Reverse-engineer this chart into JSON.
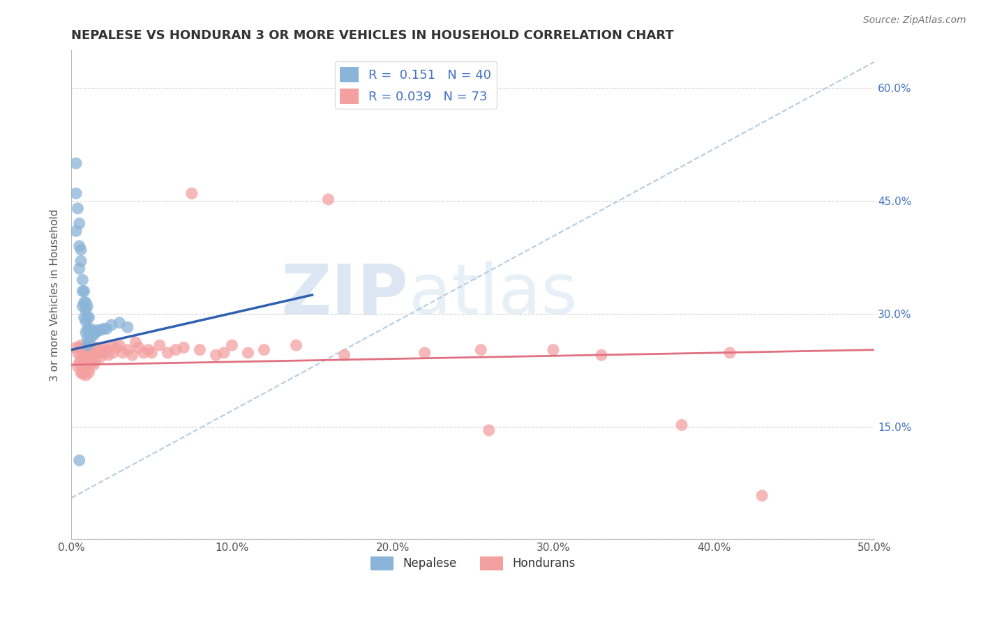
{
  "title": "NEPALESE VS HONDURAN 3 OR MORE VEHICLES IN HOUSEHOLD CORRELATION CHART",
  "source": "Source: ZipAtlas.com",
  "ylabel": "3 or more Vehicles in Household",
  "x_min": 0.0,
  "x_max": 0.5,
  "y_min": 0.0,
  "y_max": 0.65,
  "x_ticks": [
    0.0,
    0.1,
    0.2,
    0.3,
    0.4,
    0.5
  ],
  "x_tick_labels": [
    "0.0%",
    "10.0%",
    "20.0%",
    "30.0%",
    "40.0%",
    "50.0%"
  ],
  "y_ticks_left": [
    0.0,
    0.15,
    0.3,
    0.45,
    0.6
  ],
  "y_ticks_right": [
    0.15,
    0.3,
    0.45,
    0.6
  ],
  "y_tick_labels_right": [
    "15.0%",
    "30.0%",
    "45.0%",
    "60.0%"
  ],
  "nepalese_color": "#8ab4d8",
  "honduran_color": "#f4a0a0",
  "nepalese_line_color": "#3060b0",
  "honduran_line_color": "#e07080",
  "diag_line_color": "#aac8e0",
  "nepalese_R": 0.151,
  "nepalese_N": 40,
  "honduran_R": 0.039,
  "honduran_N": 73,
  "legend_label_nepalese": "Nepalese",
  "legend_label_honduran": "Hondurans",
  "legend_text_color": "#4472c4",
  "watermark_color": "#d0e4f0",
  "nepalese_x": [
    0.003,
    0.003,
    0.003,
    0.004,
    0.005,
    0.005,
    0.005,
    0.006,
    0.006,
    0.007,
    0.007,
    0.007,
    0.008,
    0.008,
    0.008,
    0.009,
    0.009,
    0.009,
    0.009,
    0.01,
    0.01,
    0.01,
    0.01,
    0.01,
    0.011,
    0.011,
    0.011,
    0.012,
    0.012,
    0.013,
    0.014,
    0.015,
    0.016,
    0.018,
    0.02,
    0.022,
    0.025,
    0.03,
    0.035,
    0.005
  ],
  "nepalese_y": [
    0.5,
    0.46,
    0.41,
    0.44,
    0.42,
    0.39,
    0.36,
    0.385,
    0.37,
    0.345,
    0.33,
    0.31,
    0.33,
    0.315,
    0.295,
    0.315,
    0.305,
    0.29,
    0.275,
    0.31,
    0.295,
    0.28,
    0.268,
    0.258,
    0.295,
    0.278,
    0.262,
    0.28,
    0.268,
    0.275,
    0.272,
    0.275,
    0.278,
    0.278,
    0.28,
    0.28,
    0.285,
    0.288,
    0.282,
    0.105
  ],
  "honduran_x": [
    0.003,
    0.004,
    0.004,
    0.005,
    0.005,
    0.006,
    0.006,
    0.006,
    0.007,
    0.007,
    0.007,
    0.008,
    0.008,
    0.008,
    0.009,
    0.009,
    0.009,
    0.01,
    0.01,
    0.01,
    0.011,
    0.011,
    0.011,
    0.012,
    0.012,
    0.013,
    0.013,
    0.014,
    0.014,
    0.015,
    0.015,
    0.016,
    0.017,
    0.018,
    0.019,
    0.02,
    0.021,
    0.022,
    0.023,
    0.025,
    0.026,
    0.028,
    0.03,
    0.032,
    0.035,
    0.038,
    0.042,
    0.045,
    0.048,
    0.055,
    0.06,
    0.065,
    0.075,
    0.08,
    0.09,
    0.1,
    0.11,
    0.12,
    0.14,
    0.16,
    0.17,
    0.22,
    0.255,
    0.26,
    0.3,
    0.33,
    0.38,
    0.41,
    0.43,
    0.04,
    0.05,
    0.07,
    0.095
  ],
  "honduran_y": [
    0.255,
    0.248,
    0.23,
    0.255,
    0.235,
    0.258,
    0.242,
    0.222,
    0.252,
    0.238,
    0.22,
    0.255,
    0.24,
    0.222,
    0.248,
    0.232,
    0.218,
    0.258,
    0.242,
    0.225,
    0.252,
    0.238,
    0.222,
    0.255,
    0.238,
    0.252,
    0.235,
    0.248,
    0.232,
    0.255,
    0.238,
    0.248,
    0.252,
    0.242,
    0.248,
    0.255,
    0.248,
    0.252,
    0.245,
    0.258,
    0.248,
    0.255,
    0.258,
    0.248,
    0.252,
    0.245,
    0.255,
    0.248,
    0.252,
    0.258,
    0.248,
    0.252,
    0.46,
    0.252,
    0.245,
    0.258,
    0.248,
    0.252,
    0.258,
    0.452,
    0.245,
    0.248,
    0.252,
    0.145,
    0.252,
    0.245,
    0.152,
    0.248,
    0.058,
    0.262,
    0.248,
    0.255,
    0.248
  ]
}
